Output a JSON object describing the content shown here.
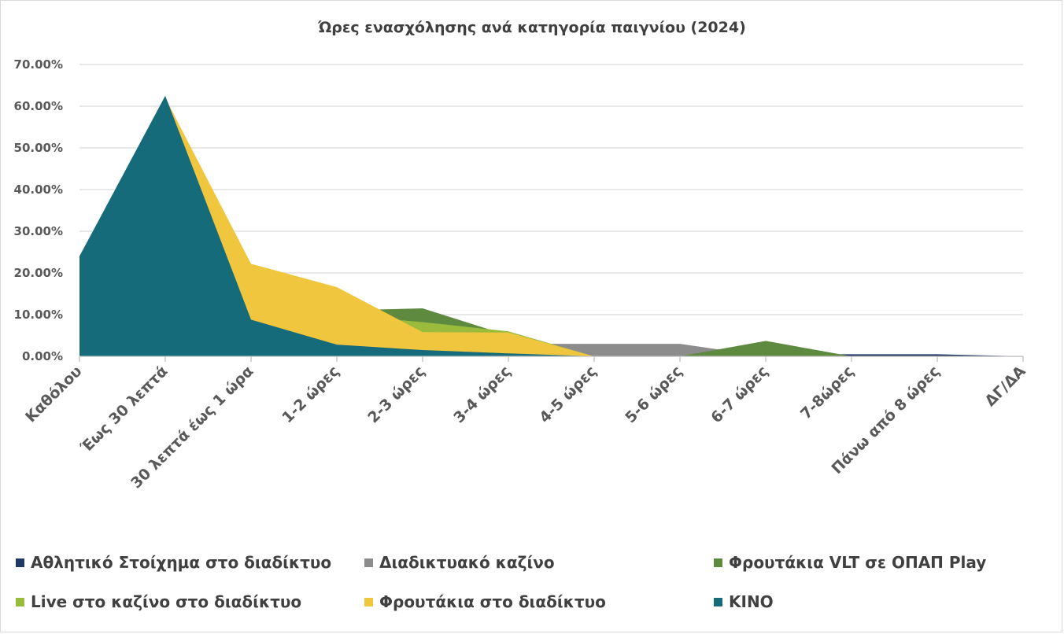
{
  "chart_data": {
    "type": "area",
    "title": "Ώρες ενασχόλησης ανά κατηγορία παιγνίου (2024)",
    "xlabel": "",
    "ylabel": "",
    "ylim": [
      0,
      0.7
    ],
    "yticks": [
      "0.00%",
      "10.00%",
      "20.00%",
      "30.00%",
      "40.00%",
      "50.00%",
      "60.00%",
      "70.00%"
    ],
    "grid": true,
    "legend_position": "bottom",
    "categories": [
      "Καθόλου",
      "Έως 30 λεπτά",
      "30 λεπτά έως 1 ώρα",
      "1-2 ώρες",
      "2-3 ώρες",
      "3-4 ώρες",
      "4-5 ώρες",
      "5-6 ώρες",
      "6-7 ώρες",
      "7-8ώρες",
      "Πάνω από 8 ώρες",
      "ΔΓ/ΔΑ"
    ],
    "series": [
      {
        "name": "Αθλητικό Στοίχημα στο διαδίκτυο",
        "color": "#1f3864",
        "values": [
          0.235,
          0.62,
          0.21,
          0.11,
          0.06,
          0.03,
          0.015,
          0.01,
          0.005,
          0.005,
          0.005,
          0.0
        ]
      },
      {
        "name": "Διαδικτυακό καζίνο",
        "color": "#8c8c8c",
        "values": [
          0.235,
          0.615,
          0.22,
          0.1,
          0.04,
          0.03,
          0.03,
          0.03,
          0.0,
          0.0,
          0.0,
          0.0
        ]
      },
      {
        "name": "Φρουτάκια VLT σε ΟΠΑΠ Play",
        "color": "#5d8a3f",
        "values": [
          0.24,
          0.62,
          0.2,
          0.11,
          0.115,
          0.05,
          0.0,
          0.0,
          0.037,
          0.0,
          0.0,
          0.0
        ]
      },
      {
        "name": "Live στο καζίνο στο διαδίκτυο",
        "color": "#9bbb3d",
        "values": [
          0.24,
          0.62,
          0.2,
          0.1,
          0.082,
          0.06,
          0.0,
          0.0,
          0.0,
          0.0,
          0.0,
          0.0
        ]
      },
      {
        "name": "Φρουτάκια στο διαδίκτυο",
        "color": "#f0c63e",
        "values": [
          0.24,
          0.62,
          0.222,
          0.166,
          0.058,
          0.057,
          0.0,
          0.0,
          0.0,
          0.0,
          0.0,
          0.0
        ]
      },
      {
        "name": "ΚΙΝΟ",
        "color": "#156b7a",
        "values": [
          0.24,
          0.625,
          0.088,
          0.028,
          0.015,
          0.007,
          0.0,
          0.0,
          0.0,
          0.0,
          0.0,
          0.0
        ]
      }
    ]
  }
}
